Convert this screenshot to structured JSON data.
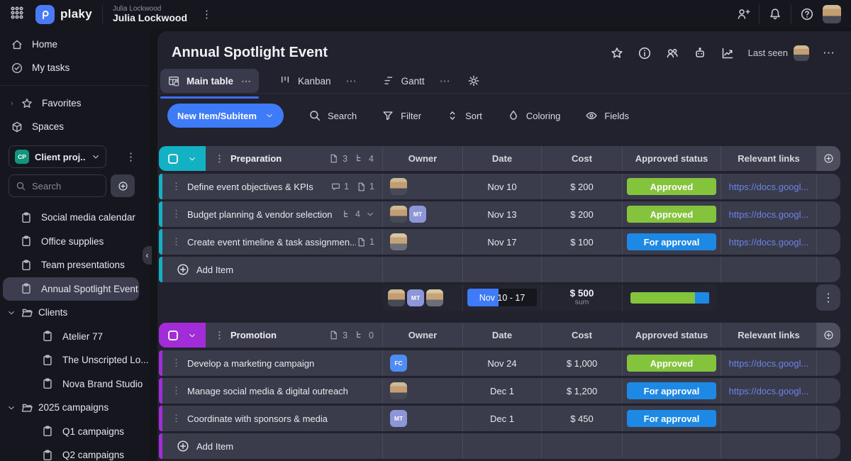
{
  "theme": {
    "primary_blue": "#3d7bf8",
    "teal": "#12b2c4",
    "purple": "#a32cd9",
    "green": "#84c43c",
    "status_blue": "#1e88e5",
    "link_blue": "#6b84e8"
  },
  "topbar": {
    "app_name": "plaky",
    "workspace_label": "Julia Lockwood",
    "user_name": "Julia Lockwood"
  },
  "sidebar": {
    "nav": [
      {
        "label": "Home"
      },
      {
        "label": "My tasks"
      }
    ],
    "sections": [
      {
        "label": "Favorites"
      },
      {
        "label": "Spaces"
      }
    ],
    "workspace": {
      "badge": "CP",
      "label": "Client proj..."
    },
    "search_placeholder": "Search",
    "projects": [
      {
        "label": "Social media calendar"
      },
      {
        "label": "Office supplies"
      },
      {
        "label": "Team presentations"
      },
      {
        "label": "Annual Spotlight Event"
      },
      {
        "label": "Clients"
      },
      {
        "label": "Atelier 77"
      },
      {
        "label": "The Unscripted Lo..."
      },
      {
        "label": "Nova Brand Studio"
      },
      {
        "label": "2025 campaigns"
      },
      {
        "label": "Q1 campaigns"
      },
      {
        "label": "Q2 campaigns"
      }
    ]
  },
  "header": {
    "title": "Annual Spotlight Event",
    "last_seen_label": "Last seen",
    "tabs": [
      {
        "label": "Main table",
        "active": true
      },
      {
        "label": "Kanban",
        "active": false
      },
      {
        "label": "Gantt",
        "active": false
      }
    ]
  },
  "toolbar": {
    "new_item_label": "New Item/Subitem",
    "actions": [
      {
        "label": "Search"
      },
      {
        "label": "Filter"
      },
      {
        "label": "Sort"
      },
      {
        "label": "Coloring"
      },
      {
        "label": "Fields"
      }
    ]
  },
  "table": {
    "columns": [
      "Owner",
      "Date",
      "Cost",
      "Approved status",
      "Relevant links"
    ],
    "add_item_label": "Add Item",
    "groups": [
      {
        "name": "Preparation",
        "color": "#12b2c4",
        "doc_count": "3",
        "subitem_count": "4",
        "rows": [
          {
            "name": "Define event objectives & KPIs",
            "chat_count": "1",
            "doc_count": "1",
            "owners": [
              {
                "type": "photo"
              }
            ],
            "date": "Nov 10",
            "cost": "$ 200",
            "status": {
              "label": "Approved",
              "color": "#84c43c"
            },
            "link": "https://docs.googl..."
          },
          {
            "name": "Budget planning & vendor selection",
            "subitem_count": "4",
            "owners": [
              {
                "type": "photo"
              },
              {
                "type": "badge",
                "text": "MT",
                "color": "#8d96d8"
              }
            ],
            "date": "Nov 13",
            "cost": "$ 200",
            "status": {
              "label": "Approved",
              "color": "#84c43c"
            },
            "link": "https://docs.googl..."
          },
          {
            "name": "Create event timeline & task assignmen...",
            "doc_count": "1",
            "owners": [
              {
                "type": "photo2"
              }
            ],
            "date": "Nov 17",
            "cost": "$ 100",
            "status": {
              "label": "For approval",
              "color": "#1e88e5"
            },
            "link": "https://docs.googl..."
          }
        ],
        "summary": {
          "date_range": "Nov 10 - 17",
          "date_fill_pct": 45,
          "cost": "$ 500",
          "cost_label": "sum",
          "progress": [
            {
              "color": "#84c43c",
              "pct": 82
            },
            {
              "color": "#1e88e5",
              "pct": 18
            }
          ]
        }
      },
      {
        "name": "Promotion",
        "color": "#a32cd9",
        "doc_count": "3",
        "subitem_count": "0",
        "rows": [
          {
            "name": "Develop a marketing campaign",
            "owners": [
              {
                "type": "badge",
                "text": "FC",
                "color": "#4d8df5"
              }
            ],
            "date": "Nov 24",
            "cost": "$ 1,000",
            "status": {
              "label": "Approved",
              "color": "#84c43c"
            },
            "link": "https://docs.googl..."
          },
          {
            "name": "Manage social media & digital outreach",
            "owners": [
              {
                "type": "photo"
              }
            ],
            "date": "Dec 1",
            "cost": "$ 1,200",
            "status": {
              "label": "For approval",
              "color": "#1e88e5"
            },
            "link": "https://docs.googl..."
          },
          {
            "name": "Coordinate with sponsors & media",
            "owners": [
              {
                "type": "badge",
                "text": "MT",
                "color": "#8d96d8"
              }
            ],
            "date": "Dec 1",
            "cost": "$ 450",
            "status": {
              "label": "For approval",
              "color": "#1e88e5"
            },
            "link": ""
          }
        ]
      }
    ]
  }
}
